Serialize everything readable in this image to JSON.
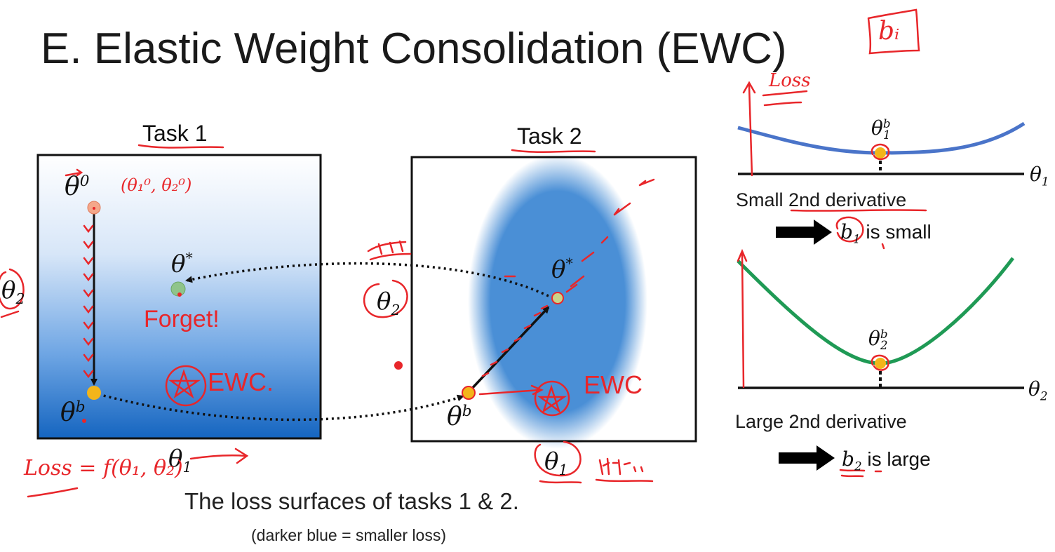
{
  "title": "E. Elastic Weight Consolidation (EWC)",
  "task1": {
    "label": "Task 1",
    "theta0_base": "θ",
    "theta0_sup": "0",
    "thetastar_base": "θ",
    "thetastar_sup": "*",
    "thetab_base": "θ",
    "thetab_sup": "b",
    "forget": "Forget!",
    "axis_x_base": "θ",
    "axis_x_sub": "1",
    "axis_y_base": "θ",
    "axis_y_sub": "2"
  },
  "task2": {
    "label": "Task 2",
    "thetastar_base": "θ",
    "thetastar_sup": "*",
    "thetab_base": "θ",
    "thetab_sup": "b",
    "axis_x_base": "θ",
    "axis_x_sub": "1",
    "axis_y_base": "θ",
    "axis_y_sub": "2"
  },
  "caption": {
    "main": "The loss surfaces of tasks 1 & 2.",
    "sub": "(darker blue = smaller loss)"
  },
  "panel_small": {
    "point_base": "θ",
    "point_sub": "1",
    "point_sup": "b",
    "axis_base": "θ",
    "axis_sub": "1",
    "description": "Small 2nd derivative",
    "result_var_base": "b",
    "result_var_sub": "1",
    "result_text": "is small"
  },
  "panel_large": {
    "point_base": "θ",
    "point_sub": "2",
    "point_sup": "b",
    "axis_base": "θ",
    "axis_sub": "2",
    "description": "Large 2nd derivative",
    "result_var_base": "b",
    "result_var_sub": "2",
    "result_text": "is large"
  },
  "annotations": {
    "theta0_coords": "(θ₁⁰, θ₂⁰)",
    "ewc_1": "EWC.",
    "ewc_2": "EWC",
    "loss_label": "Loss",
    "loss_formula": "Loss = f(θ₁, θ₂)",
    "bi_box": "bᵢ"
  },
  "colors": {
    "blue_curve": "#4a74c9",
    "green_curve": "#1f9a55",
    "point_yellow": "#f3b51a",
    "ink_red": "#e8262a",
    "surface_dark": "#1565c0"
  }
}
